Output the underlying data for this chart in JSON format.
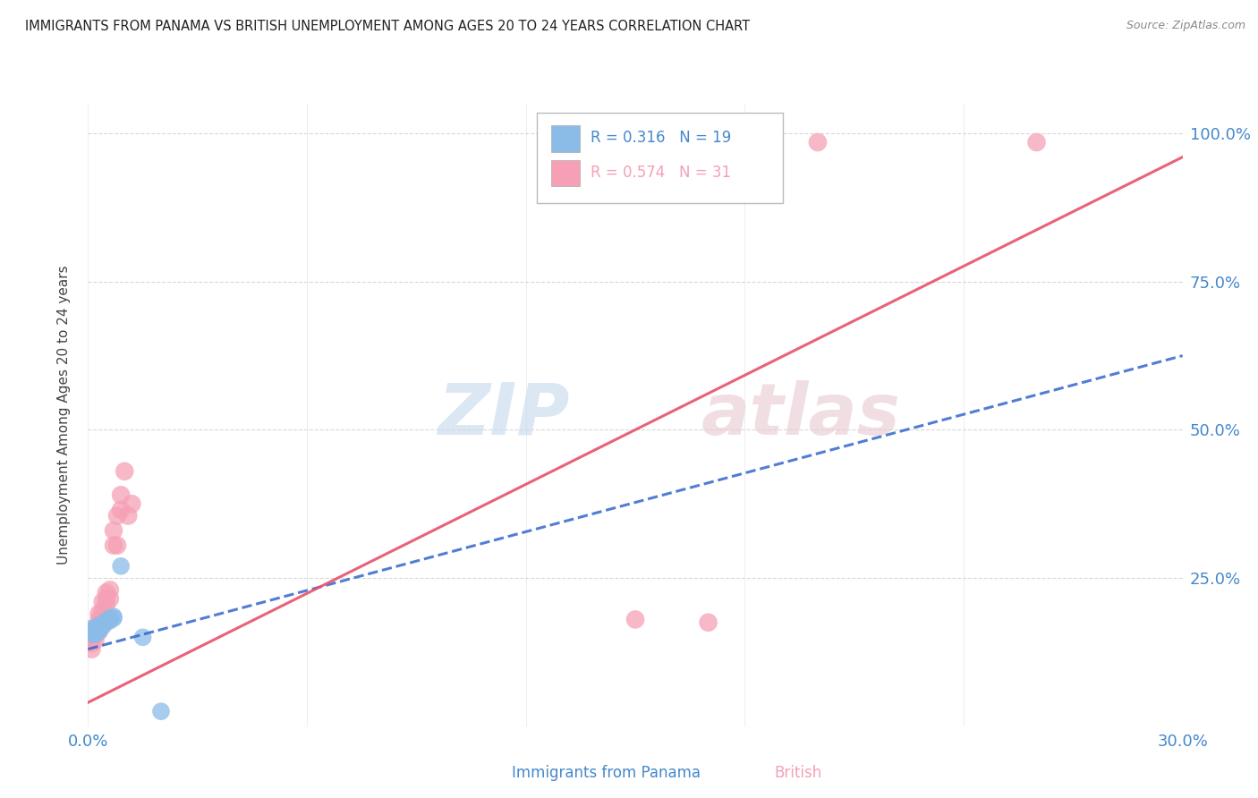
{
  "title": "IMMIGRANTS FROM PANAMA VS BRITISH UNEMPLOYMENT AMONG AGES 20 TO 24 YEARS CORRELATION CHART",
  "source": "Source: ZipAtlas.com",
  "ylabel": "Unemployment Among Ages 20 to 24 years",
  "watermark_zip": "ZIP",
  "watermark_atlas": "atlas",
  "legend_blue_r": "R = 0.316",
  "legend_blue_n": "N = 19",
  "legend_pink_r": "R = 0.574",
  "legend_pink_n": "N = 31",
  "blue_scatter": [
    [
      0.001,
      0.155
    ],
    [
      0.002,
      0.155
    ],
    [
      0.002,
      0.16
    ],
    [
      0.003,
      0.16
    ],
    [
      0.001,
      0.165
    ],
    [
      0.002,
      0.165
    ],
    [
      0.003,
      0.165
    ],
    [
      0.004,
      0.168
    ],
    [
      0.003,
      0.17
    ],
    [
      0.004,
      0.172
    ],
    [
      0.005,
      0.175
    ],
    [
      0.005,
      0.178
    ],
    [
      0.006,
      0.178
    ],
    [
      0.006,
      0.182
    ],
    [
      0.007,
      0.182
    ],
    [
      0.007,
      0.185
    ],
    [
      0.009,
      0.27
    ],
    [
      0.015,
      0.15
    ],
    [
      0.02,
      0.025
    ]
  ],
  "pink_scatter": [
    [
      0.001,
      0.13
    ],
    [
      0.001,
      0.14
    ],
    [
      0.001,
      0.15
    ],
    [
      0.002,
      0.145
    ],
    [
      0.002,
      0.155
    ],
    [
      0.002,
      0.165
    ],
    [
      0.003,
      0.16
    ],
    [
      0.003,
      0.17
    ],
    [
      0.003,
      0.18
    ],
    [
      0.003,
      0.19
    ],
    [
      0.004,
      0.18
    ],
    [
      0.004,
      0.195
    ],
    [
      0.004,
      0.21
    ],
    [
      0.005,
      0.205
    ],
    [
      0.005,
      0.215
    ],
    [
      0.005,
      0.225
    ],
    [
      0.006,
      0.215
    ],
    [
      0.006,
      0.23
    ],
    [
      0.007,
      0.305
    ],
    [
      0.007,
      0.33
    ],
    [
      0.008,
      0.305
    ],
    [
      0.008,
      0.355
    ],
    [
      0.009,
      0.365
    ],
    [
      0.009,
      0.39
    ],
    [
      0.01,
      0.43
    ],
    [
      0.011,
      0.355
    ],
    [
      0.012,
      0.375
    ],
    [
      0.15,
      0.18
    ],
    [
      0.17,
      0.175
    ],
    [
      0.2,
      0.985
    ],
    [
      0.26,
      0.985
    ]
  ],
  "blue_line": {
    "x0": 0.0,
    "x1": 0.3,
    "y0": 0.13,
    "y1": 0.625
  },
  "pink_line": {
    "x0": 0.0,
    "x1": 0.3,
    "y0": 0.04,
    "y1": 0.96
  },
  "xlim": [
    0.0,
    0.3
  ],
  "ylim": [
    0.0,
    1.05
  ],
  "yticks": [
    0.0,
    0.25,
    0.5,
    0.75,
    1.0
  ],
  "ytick_labels": [
    "",
    "25.0%",
    "50.0%",
    "75.0%",
    "100.0%"
  ],
  "xticks": [
    0.0,
    0.06,
    0.12,
    0.18,
    0.24,
    0.3
  ],
  "xtick_labels": [
    "0.0%",
    "",
    "",
    "",
    "",
    "30.0%"
  ],
  "blue_color": "#8bbce8",
  "pink_color": "#f5a0b5",
  "blue_line_color": "#3366cc",
  "pink_line_color": "#e8506a",
  "grid_color": "#d8d8d8",
  "title_color": "#222222",
  "axis_tick_color": "#4488cc",
  "ylabel_color": "#444444",
  "background_color": "#ffffff"
}
